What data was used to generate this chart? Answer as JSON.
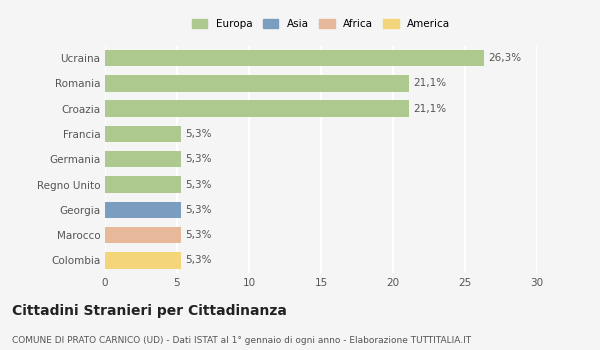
{
  "categories": [
    "Ucraina",
    "Romania",
    "Croazia",
    "Francia",
    "Germania",
    "Regno Unito",
    "Georgia",
    "Marocco",
    "Colombia"
  ],
  "values": [
    26.3,
    21.1,
    21.1,
    5.3,
    5.3,
    5.3,
    5.3,
    5.3,
    5.3
  ],
  "labels": [
    "26,3%",
    "21,1%",
    "21,1%",
    "5,3%",
    "5,3%",
    "5,3%",
    "5,3%",
    "5,3%",
    "5,3%"
  ],
  "colors": [
    "#adc98e",
    "#adc98e",
    "#adc98e",
    "#adc98e",
    "#adc98e",
    "#adc98e",
    "#7b9ec0",
    "#e8b89a",
    "#f5d57a"
  ],
  "legend_labels": [
    "Europa",
    "Asia",
    "Africa",
    "America"
  ],
  "legend_colors": [
    "#adc98e",
    "#7b9ec0",
    "#e8b89a",
    "#f5d57a"
  ],
  "xlim": [
    0,
    30
  ],
  "xticks": [
    0,
    5,
    10,
    15,
    20,
    25,
    30
  ],
  "title": "Cittadini Stranieri per Cittadinanza",
  "subtitle": "COMUNE DI PRATO CARNICO (UD) - Dati ISTAT al 1° gennaio di ogni anno - Elaborazione TUTTITALIA.IT",
  "background_color": "#f5f5f5",
  "bar_height": 0.65,
  "grid_color": "#ffffff",
  "label_fontsize": 7.5,
  "tick_fontsize": 7.5,
  "title_fontsize": 10,
  "subtitle_fontsize": 6.5,
  "text_color": "#555555"
}
